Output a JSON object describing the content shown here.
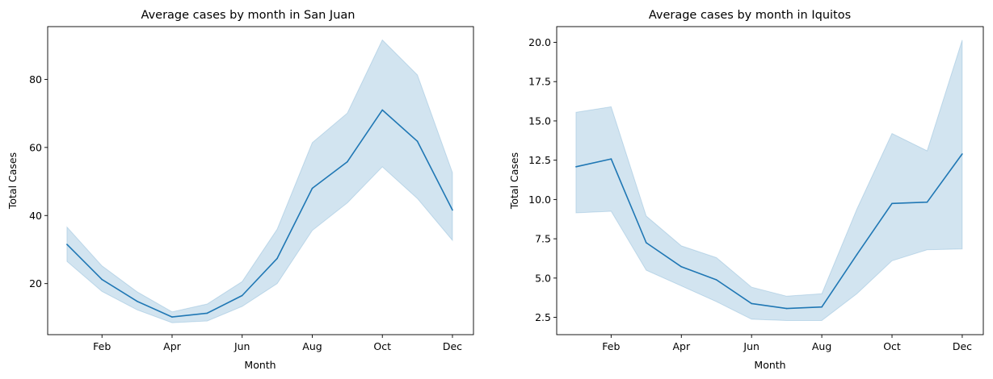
{
  "chart_data": [
    {
      "type": "line",
      "title": "Average cases by month in San Juan",
      "xlabel": "Month",
      "ylabel": "Total Cases",
      "x": [
        1,
        2,
        3,
        4,
        5,
        6,
        7,
        8,
        9,
        10,
        11,
        12
      ],
      "xtick_values": [
        2,
        4,
        6,
        8,
        10,
        12
      ],
      "xtick_labels": [
        "Feb",
        "Apr",
        "Jun",
        "Aug",
        "Oct",
        "Dec"
      ],
      "xlim": [
        0.45,
        12.6
      ],
      "ylim": [
        5.0,
        95.5
      ],
      "ytick_values": [
        20,
        40,
        60,
        80
      ],
      "ytick_labels": [
        "20",
        "40",
        "60",
        "80"
      ],
      "series": [
        {
          "values": [
            31.5,
            21.2,
            14.8,
            10.2,
            11.3,
            16.5,
            27.4,
            48.0,
            55.8,
            71.0,
            61.8,
            41.6
          ],
          "ci_lower": [
            26.5,
            17.7,
            12.3,
            8.5,
            9.0,
            13.3,
            20.0,
            35.6,
            43.7,
            54.3,
            45.0,
            32.7
          ],
          "ci_upper": [
            36.6,
            25.2,
            17.6,
            11.7,
            14.0,
            20.6,
            36.0,
            61.4,
            70.1,
            91.6,
            81.3,
            52.6
          ]
        }
      ],
      "line_color": "#1f77b4",
      "band_color": "#1f77b4",
      "grid": false
    },
    {
      "type": "line",
      "title": "Average cases by month in Iquitos",
      "xlabel": "Month",
      "ylabel": "Total Cases",
      "x": [
        1,
        2,
        3,
        4,
        5,
        6,
        7,
        8,
        9,
        10,
        11,
        12
      ],
      "xtick_values": [
        2,
        4,
        6,
        8,
        10,
        12
      ],
      "xtick_labels": [
        "Feb",
        "Apr",
        "Jun",
        "Aug",
        "Oct",
        "Dec"
      ],
      "xlim": [
        0.45,
        12.6
      ],
      "ylim": [
        1.4,
        21.0
      ],
      "ytick_values": [
        2.5,
        5.0,
        7.5,
        10.0,
        12.5,
        15.0,
        17.5,
        20.0
      ],
      "ytick_labels": [
        "2.5",
        "5.0",
        "7.5",
        "10.0",
        "12.5",
        "15.0",
        "17.5",
        "20.0"
      ],
      "series": [
        {
          "values": [
            12.08,
            12.58,
            7.25,
            5.72,
            4.89,
            3.38,
            3.06,
            3.16,
            6.5,
            9.75,
            9.83,
            12.9
          ],
          "ci_lower": [
            9.15,
            9.25,
            5.5,
            4.5,
            3.5,
            2.38,
            2.3,
            2.3,
            4.0,
            6.1,
            6.8,
            6.85
          ],
          "ci_upper": [
            15.55,
            15.9,
            8.95,
            7.05,
            6.3,
            4.42,
            3.85,
            4.0,
            9.4,
            14.2,
            13.1,
            20.15
          ]
        }
      ],
      "line_color": "#1f77b4",
      "band_color": "#1f77b4",
      "grid": false
    }
  ]
}
